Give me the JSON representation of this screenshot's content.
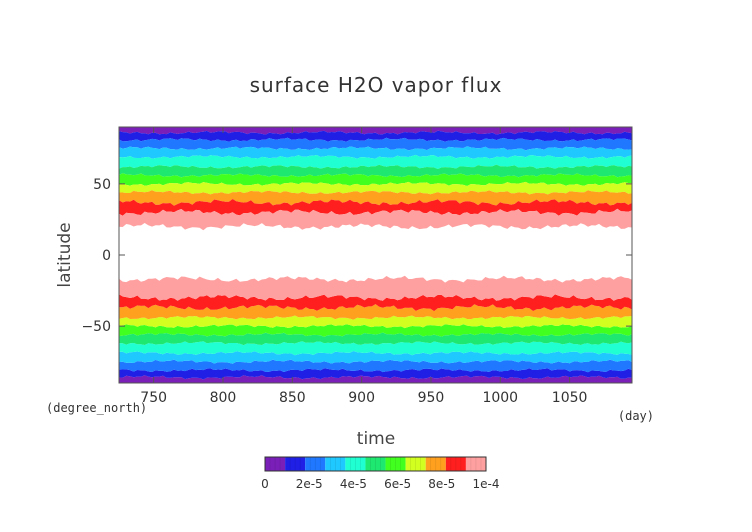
{
  "chart_data": {
    "type": "heatmap",
    "title": "surface H2O vapor flux",
    "xlabel": "time",
    "ylabel": "latitude",
    "x_unit": "(day)",
    "y_unit": "(degree_north)",
    "xlim": [
      725,
      1095
    ],
    "ylim": [
      -90,
      90
    ],
    "x_ticks": [
      750,
      800,
      850,
      900,
      950,
      1000,
      1050
    ],
    "y_ticks": [
      -50,
      0,
      50
    ],
    "levels": [
      0,
      1e-05,
      2e-05,
      3e-05,
      4e-05,
      5e-05,
      6e-05,
      7e-05,
      8e-05,
      9e-05,
      0.0001
    ],
    "colors": [
      "#7a1fb8",
      "#1f1fe6",
      "#1f78ff",
      "#1fc8ff",
      "#1fffd2",
      "#1fe870",
      "#41ff1f",
      "#d2ff1f",
      "#ffa01f",
      "#ff1f1f",
      "#ffa0a0"
    ],
    "above_max_color": "#ffffff",
    "colorbar_tick_labels": [
      "0",
      "2e-5",
      "4e-5",
      "6e-5",
      "8e-5",
      "1e-4"
    ],
    "band_boundaries_northern": [
      86,
      81,
      75,
      69,
      62,
      56,
      50,
      44,
      37,
      30,
      20
    ],
    "band_boundaries_southern": [
      -86,
      -81,
      -75,
      -69,
      -62,
      -56,
      -50,
      -44,
      -37,
      -30,
      -17
    ],
    "grid": false
  }
}
